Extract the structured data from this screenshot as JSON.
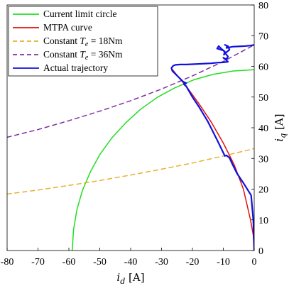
{
  "chart_data": {
    "type": "line",
    "x_axis": {
      "title_var": "i",
      "title_sub": "d",
      "title_unit": " [A]",
      "range": [
        -80,
        0
      ],
      "ticks": [
        -80,
        -70,
        -60,
        -50,
        -40,
        -30,
        -20,
        -10,
        0
      ],
      "position": "bottom"
    },
    "y_axis": {
      "title_var": "i",
      "title_sub": "q",
      "title_unit": " [A]",
      "range": [
        0,
        80
      ],
      "ticks": [
        0,
        10,
        20,
        30,
        40,
        50,
        60,
        70,
        80
      ],
      "position": "right"
    },
    "grid": false,
    "legend": {
      "placement": "top-left",
      "entries": [
        {
          "parts": [
            {
              "t": "Current limit circle",
              "s": "n"
            }
          ],
          "color": "#22dd22",
          "style": "solid"
        },
        {
          "parts": [
            {
              "t": "MTPA curve",
              "s": "n"
            }
          ],
          "color": "#e01010",
          "style": "solid"
        },
        {
          "parts": [
            {
              "t": "Constant ",
              "s": "n"
            },
            {
              "t": "T",
              "s": "i"
            },
            {
              "t": "e",
              "s": "sub"
            },
            {
              "t": " = 18Nm",
              "s": "n"
            }
          ],
          "color": "#e8b030",
          "style": "dashed"
        },
        {
          "parts": [
            {
              "t": "Constant ",
              "s": "n"
            },
            {
              "t": "T",
              "s": "i"
            },
            {
              "t": "e",
              "s": "sub"
            },
            {
              "t": " = 36Nm",
              "s": "n"
            }
          ],
          "color": "#8030a0",
          "style": "dashed"
        },
        {
          "parts": [
            {
              "t": "Actual trajectory",
              "s": "n"
            }
          ],
          "color": "#1010e0",
          "style": "solid"
        }
      ]
    },
    "series": [
      {
        "key": "current_limit_circle",
        "color": "#22dd22",
        "dash": "none",
        "width": 1.5,
        "x": [
          -58.9,
          -58.5,
          -57.4,
          -55.6,
          -53.0,
          -49.9,
          -46.0,
          -41.6,
          -36.8,
          -31.4,
          -25.7,
          -19.6,
          -13.3,
          -6.7,
          0
        ],
        "y": [
          0,
          6.7,
          13.3,
          19.6,
          25.7,
          31.4,
          36.8,
          41.6,
          46.0,
          49.9,
          53.0,
          55.6,
          57.4,
          58.5,
          58.9
        ]
      },
      {
        "key": "mtpa_curve",
        "color": "#e01010",
        "dash": "none",
        "width": 1.5,
        "x": [
          0,
          -0.3,
          -1.2,
          -3.5,
          -6.5,
          -10.0,
          -14.0,
          -18.0,
          -22.0,
          -24.5,
          -26.5
        ],
        "y": [
          0,
          5.0,
          10.0,
          20.0,
          28.0,
          35.0,
          42.0,
          48.0,
          53.5,
          56.5,
          59.0
        ]
      },
      {
        "key": "constant_te_18",
        "color": "#e8b030",
        "dash": "6,5",
        "width": 1.5,
        "x": [
          -80,
          -70,
          -60,
          -50,
          -40,
          -30,
          -20,
          -10,
          0
        ],
        "y": [
          18.4,
          19.7,
          21.2,
          22.8,
          24.6,
          26.5,
          28.5,
          30.8,
          33.2
        ]
      },
      {
        "key": "constant_te_36",
        "color": "#8030a0",
        "dash": "6,5",
        "width": 1.5,
        "x": [
          -80,
          -70,
          -60,
          -50,
          -40,
          -30,
          -20,
          -10,
          0
        ],
        "y": [
          36.9,
          39.4,
          42.3,
          45.4,
          48.8,
          52.6,
          56.9,
          61.6,
          67.0
        ]
      },
      {
        "key": "actual_trajectory",
        "color": "#1010e0",
        "dash": "none",
        "width": 2.2,
        "x": [
          0,
          -0.3,
          -1.0,
          -3.5,
          -5.5,
          -7.0,
          -8.0,
          -9.0,
          -9.5,
          -12.0,
          -15.0,
          -18.0,
          -20.0,
          -22.0,
          -22.8,
          -22.0,
          -23.0,
          -24.5,
          -26.5,
          -26.8,
          -26.2,
          -25.5,
          -24.0,
          -22.0,
          -20.0,
          -18.0,
          -16.0,
          -14.0,
          -12.0,
          -10.0,
          -8.5,
          -9.0,
          -10.0,
          -9.0,
          -8.5,
          -9.5,
          -10.0,
          -12.0,
          -11.5,
          -10.5,
          -9.5,
          -9.8,
          -9.0,
          -8.0,
          -8.5,
          -9.5,
          -9.0,
          -8.8,
          -9.0,
          -8.0,
          -7.0,
          -5.0,
          -3.0,
          -1.0,
          0
        ],
        "y": [
          0,
          10,
          18,
          22,
          25,
          28,
          30.2,
          31.0,
          30.8,
          36.0,
          42.0,
          47.0,
          50.0,
          53.5,
          54.2,
          54.5,
          55.0,
          56.5,
          58.5,
          59.5,
          60.2,
          60.5,
          60.6,
          60.6,
          60.7,
          60.8,
          60.9,
          61.0,
          61.2,
          61.3,
          61.5,
          62.0,
          62.8,
          62.3,
          63.2,
          64.5,
          65.2,
          65.8,
          66.6,
          65.6,
          64.8,
          63.8,
          64.6,
          65.4,
          66.6,
          67.0,
          66.8,
          66.4,
          66.0,
          66.2,
          66.4,
          66.5,
          66.6,
          66.8,
          67.0
        ]
      }
    ]
  }
}
